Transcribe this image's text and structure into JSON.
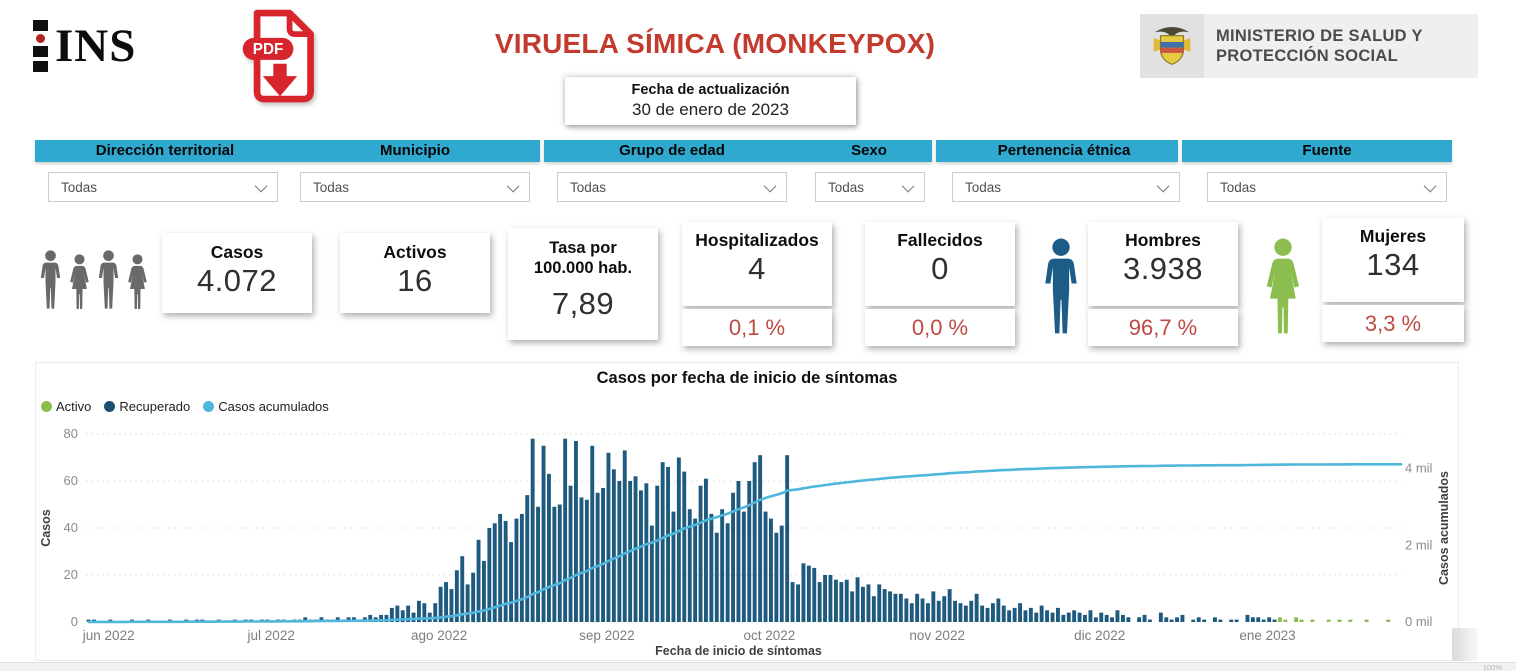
{
  "header": {
    "ins_text": "INS",
    "pdf_badge": "PDF",
    "title": "VIRUELA SÍMICA (MONKEYPOX)",
    "update_label": "Fecha de actualización",
    "update_date": "30 de enero de 2023",
    "ministry_line1": "MINISTERIO DE SALUD Y",
    "ministry_line2": "PROTECCIÓN SOCIAL"
  },
  "filters": [
    {
      "label": "Dirección territorial",
      "value": "Todas"
    },
    {
      "label": "Municipio",
      "value": "Todas"
    },
    {
      "label": "Grupo de edad",
      "value": "Todas"
    },
    {
      "label": "Sexo",
      "value": "Todas"
    },
    {
      "label": "Pertenencia étnica",
      "value": "Todas"
    },
    {
      "label": "Fuente",
      "value": "Todas"
    }
  ],
  "kpis": {
    "casos": {
      "label": "Casos",
      "value": "4.072"
    },
    "activos": {
      "label": "Activos",
      "value": "16"
    },
    "tasa": {
      "label_line1": "Tasa por",
      "label_line2": "100.000 hab.",
      "value": "7,89"
    },
    "hospitalizados": {
      "label": "Hospitalizados",
      "value": "4",
      "pct": "0,1 %"
    },
    "fallecidos": {
      "label": "Fallecidos",
      "value": "0",
      "pct": "0,0 %"
    },
    "hombres": {
      "label": "Hombres",
      "value": "3.938",
      "pct": "96,7 %"
    },
    "mujeres": {
      "label": "Mujeres",
      "value": "134",
      "pct": "3,3 %"
    }
  },
  "colors": {
    "accent_cyan": "#30A9D1",
    "title_red": "#C23B2E",
    "pct_red": "#BE4A44",
    "bar_blue": "#1E5A7E",
    "legend_blue": "#1B4F6E",
    "line_blue": "#4FB6DC",
    "green": "#8CBE4F",
    "icon_gray": "#696969",
    "male_blue": "#1D5C87"
  },
  "footer": {
    "zoom_level": "100%"
  },
  "chart_data": {
    "type": "bar+line",
    "title": "Casos por fecha de inicio de síntomas",
    "xlabel": "Fecha de inicio de síntomas",
    "ylabel_left": "Casos",
    "ylabel_right": "Casos acumulados",
    "legend": [
      {
        "name": "Activo",
        "color": "#8CBE4F"
      },
      {
        "name": "Recuperado",
        "color": "#1B4F6E"
      },
      {
        "name": "Casos acumulados",
        "color": "#4FB6DC"
      }
    ],
    "grid": "dotted-horizontal",
    "y_left_ticks": [
      0,
      20,
      40,
      60,
      80
    ],
    "y_left_max": 80,
    "y_right_ticks": [
      "0 mil",
      "2 mil",
      "4 mil"
    ],
    "y_right_tick_step": 2000,
    "y_right_max": 4900,
    "cumulative_final_reported": 4072,
    "x_months": [
      {
        "label": "jun 2022",
        "day": 0
      },
      {
        "label": "jul 2022",
        "day": 30
      },
      {
        "label": "ago 2022",
        "day": 61
      },
      {
        "label": "sep 2022",
        "day": 92
      },
      {
        "label": "oct 2022",
        "day": 122
      },
      {
        "label": "nov 2022",
        "day": 153
      },
      {
        "label": "dic 2022",
        "day": 183
      },
      {
        "label": "ene 2023",
        "day": 214
      }
    ],
    "active_green_from_day": 220,
    "daily_values": [
      1,
      1,
      0,
      0,
      1,
      0,
      0,
      0,
      1,
      0,
      0,
      1,
      0,
      0,
      0,
      1,
      0,
      0,
      1,
      0,
      1,
      1,
      0,
      0,
      1,
      0,
      0,
      1,
      0,
      1,
      1,
      0,
      1,
      1,
      0,
      1,
      1,
      0,
      1,
      1,
      2,
      1,
      1,
      2,
      1,
      1,
      2,
      1,
      2,
      2,
      1,
      2,
      3,
      2,
      3,
      3,
      6,
      7,
      5,
      7,
      4,
      9,
      8,
      4,
      8,
      15,
      17,
      14,
      22,
      28,
      16,
      21,
      35,
      26,
      40,
      42,
      46,
      43,
      34,
      44,
      46,
      54,
      78,
      49,
      75,
      63,
      49,
      50,
      78,
      58,
      77,
      53,
      52,
      75,
      55,
      57,
      72,
      65,
      60,
      73,
      60,
      62,
      56,
      59,
      41,
      58,
      68,
      66,
      47,
      70,
      64,
      48,
      44,
      58,
      61,
      46,
      38,
      48,
      42,
      55,
      60,
      47,
      60,
      68,
      71,
      47,
      44,
      38,
      41,
      71,
      17,
      16,
      25,
      24,
      23,
      17,
      20,
      20,
      18,
      17,
      18,
      13,
      19,
      15,
      16,
      11,
      16,
      14,
      13,
      12,
      12,
      10,
      8,
      12,
      10,
      8,
      13,
      9,
      11,
      14,
      9,
      8,
      7,
      9,
      12,
      7,
      6,
      8,
      10,
      7,
      5,
      6,
      8,
      5,
      6,
      4,
      7,
      5,
      4,
      6,
      3,
      4,
      5,
      4,
      3,
      5,
      2,
      4,
      3,
      2,
      5,
      3,
      2,
      0,
      2,
      3,
      1,
      0,
      4,
      2,
      1,
      2,
      3,
      0,
      1,
      2,
      1,
      0,
      2,
      1,
      0,
      1,
      1,
      0,
      3,
      2,
      2,
      1,
      2,
      1,
      2,
      1,
      0,
      2,
      1,
      0,
      1,
      0,
      0,
      1,
      0,
      1,
      0,
      1,
      0,
      0,
      1,
      0,
      0,
      0,
      1
    ]
  }
}
